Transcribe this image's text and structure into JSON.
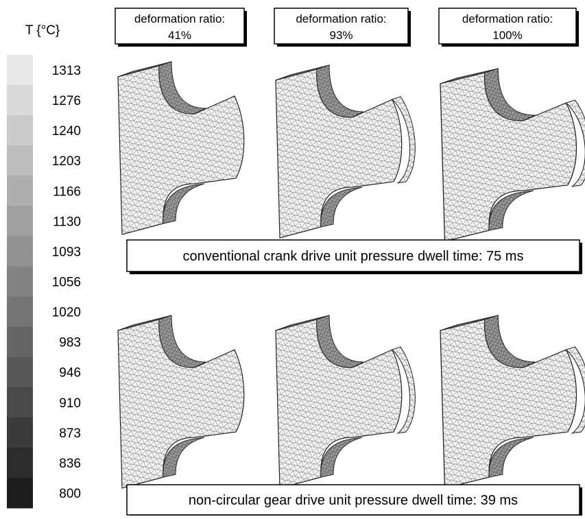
{
  "legend": {
    "title": "T {°C}",
    "labels": [
      1313,
      1276,
      1240,
      1203,
      1166,
      1130,
      1093,
      1056,
      1020,
      983,
      946,
      910,
      873,
      836,
      800
    ]
  },
  "columns": [
    {
      "label": "deformation ratio:",
      "value": "41%"
    },
    {
      "label": "deformation ratio:",
      "value": "93%"
    },
    {
      "label": "deformation ratio:",
      "value": "100%"
    }
  ],
  "rows": [
    {
      "caption": "conventional crank drive unit pressure dwell time: 75 ms"
    },
    {
      "caption": "non-circular gear drive unit pressure dwell time: 39 ms"
    }
  ]
}
